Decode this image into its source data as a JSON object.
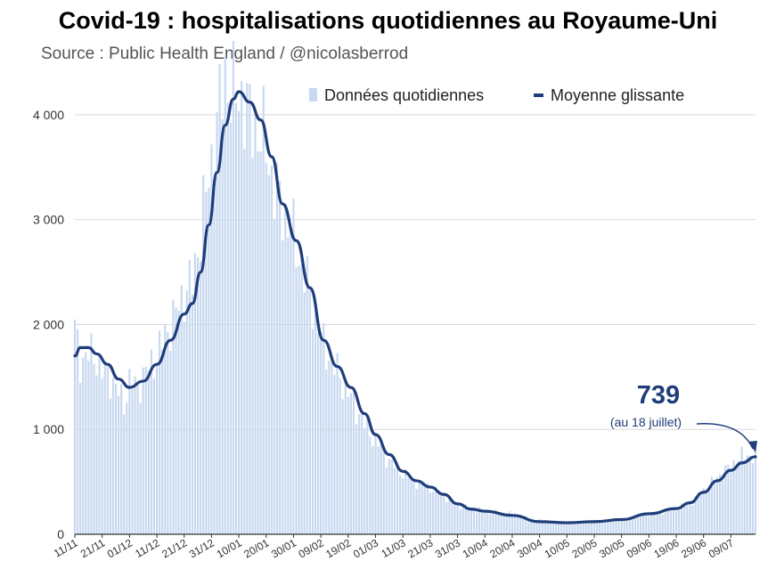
{
  "title": "Covid-19 : hospitalisations quotidiennes au Royaume-Uni",
  "subtitle": "Source : Public Health England / @nicolasberrod",
  "colors": {
    "bars": "#c7d8f0",
    "line": "#1f3d7a",
    "grid": "#d9d9d9",
    "annotation": "#1f3d7a",
    "axis_text": "#333333"
  },
  "chart_data": {
    "type": "bar",
    "grid": true,
    "legend_position": "top-right",
    "ylim": [
      0,
      4500
    ],
    "y_ticks": [
      0,
      1000,
      2000,
      3000,
      4000
    ],
    "y_tick_labels": [
      "0",
      "1 000",
      "2 000",
      "3 000",
      "4 000"
    ],
    "x_tick_labels": [
      "11/11",
      "21/11",
      "01/12",
      "11/12",
      "21/12",
      "31/12",
      "10/01",
      "20/01",
      "30/01",
      "09/02",
      "19/02",
      "01/03",
      "11/03",
      "21/03",
      "31/03",
      "10/04",
      "20/04",
      "30/04",
      "10/05",
      "20/05",
      "30/05",
      "09/06",
      "19/06",
      "29/06",
      "09/07"
    ],
    "x_start": "2020-11-11",
    "x_end": "2021-07-18",
    "series": [
      {
        "name": "Données quotidiennes",
        "type": "bar",
        "values_anchor": [
          [
            "2020-11-11",
            1950
          ],
          [
            "2020-11-13",
            1650
          ],
          [
            "2020-11-15",
            1700
          ],
          [
            "2020-11-18",
            1720
          ],
          [
            "2020-11-21",
            1550
          ],
          [
            "2020-11-24",
            1500
          ],
          [
            "2020-11-27",
            1350
          ],
          [
            "2020-11-29",
            1250
          ],
          [
            "2020-12-01",
            1450
          ],
          [
            "2020-12-04",
            1400
          ],
          [
            "2020-12-07",
            1550
          ],
          [
            "2020-12-11",
            1700
          ],
          [
            "2020-12-14",
            1900
          ],
          [
            "2020-12-17",
            2050
          ],
          [
            "2020-12-21",
            2300
          ],
          [
            "2020-12-24",
            2400
          ],
          [
            "2020-12-27",
            2900
          ],
          [
            "2020-12-30",
            3400
          ],
          [
            "2021-01-02",
            3900
          ],
          [
            "2021-01-05",
            4400
          ],
          [
            "2021-01-08",
            4150
          ],
          [
            "2021-01-11",
            4200
          ],
          [
            "2021-01-14",
            3950
          ],
          [
            "2021-01-17",
            3850
          ],
          [
            "2021-01-20",
            3700
          ],
          [
            "2021-01-23",
            3300
          ],
          [
            "2021-01-27",
            3050
          ],
          [
            "2021-01-31",
            2750
          ],
          [
            "2021-02-05",
            2300
          ],
          [
            "2021-02-10",
            1800
          ],
          [
            "2021-02-15",
            1550
          ],
          [
            "2021-02-20",
            1300
          ],
          [
            "2021-02-25",
            1050
          ],
          [
            "2021-03-01",
            900
          ],
          [
            "2021-03-06",
            700
          ],
          [
            "2021-03-11",
            580
          ],
          [
            "2021-03-16",
            500
          ],
          [
            "2021-03-21",
            440
          ],
          [
            "2021-03-26",
            370
          ],
          [
            "2021-03-31",
            280
          ],
          [
            "2021-04-05",
            240
          ],
          [
            "2021-04-10",
            220
          ],
          [
            "2021-04-20",
            190
          ],
          [
            "2021-04-30",
            130
          ],
          [
            "2021-05-10",
            110
          ],
          [
            "2021-05-20",
            120
          ],
          [
            "2021-05-30",
            140
          ],
          [
            "2021-06-09",
            190
          ],
          [
            "2021-06-19",
            240
          ],
          [
            "2021-06-25",
            320
          ],
          [
            "2021-06-29",
            410
          ],
          [
            "2021-07-04",
            540
          ],
          [
            "2021-07-09",
            650
          ],
          [
            "2021-07-13",
            740
          ],
          [
            "2021-07-18",
            760
          ]
        ]
      },
      {
        "name": "Moyenne glissante",
        "type": "line",
        "points": [
          [
            "2020-11-11",
            1700
          ],
          [
            "2020-11-13",
            1780
          ],
          [
            "2020-11-16",
            1780
          ],
          [
            "2020-11-19",
            1720
          ],
          [
            "2020-11-23",
            1620
          ],
          [
            "2020-11-27",
            1480
          ],
          [
            "2020-12-01",
            1400
          ],
          [
            "2020-12-06",
            1460
          ],
          [
            "2020-12-11",
            1620
          ],
          [
            "2020-12-16",
            1850
          ],
          [
            "2020-12-21",
            2100
          ],
          [
            "2020-12-24",
            2200
          ],
          [
            "2020-12-27",
            2500
          ],
          [
            "2020-12-30",
            2950
          ],
          [
            "2021-01-02",
            3450
          ],
          [
            "2021-01-05",
            3900
          ],
          [
            "2021-01-08",
            4150
          ],
          [
            "2021-01-10",
            4220
          ],
          [
            "2021-01-14",
            4120
          ],
          [
            "2021-01-18",
            3950
          ],
          [
            "2021-01-22",
            3600
          ],
          [
            "2021-01-26",
            3150
          ],
          [
            "2021-01-31",
            2800
          ],
          [
            "2021-02-05",
            2350
          ],
          [
            "2021-02-10",
            1850
          ],
          [
            "2021-02-15",
            1600
          ],
          [
            "2021-02-20",
            1400
          ],
          [
            "2021-02-25",
            1150
          ],
          [
            "2021-03-01",
            950
          ],
          [
            "2021-03-06",
            760
          ],
          [
            "2021-03-11",
            600
          ],
          [
            "2021-03-16",
            510
          ],
          [
            "2021-03-21",
            450
          ],
          [
            "2021-03-26",
            380
          ],
          [
            "2021-03-31",
            290
          ],
          [
            "2021-04-05",
            240
          ],
          [
            "2021-04-10",
            220
          ],
          [
            "2021-04-20",
            180
          ],
          [
            "2021-04-30",
            120
          ],
          [
            "2021-05-10",
            110
          ],
          [
            "2021-05-20",
            120
          ],
          [
            "2021-05-30",
            140
          ],
          [
            "2021-06-09",
            195
          ],
          [
            "2021-06-19",
            245
          ],
          [
            "2021-06-24",
            300
          ],
          [
            "2021-06-29",
            400
          ],
          [
            "2021-07-04",
            510
          ],
          [
            "2021-07-09",
            610
          ],
          [
            "2021-07-13",
            680
          ],
          [
            "2021-07-18",
            739
          ]
        ]
      }
    ],
    "legend": [
      {
        "label": "Données quotidiennes",
        "symbol": "bar"
      },
      {
        "label": "Moyenne glissante",
        "symbol": "line"
      }
    ],
    "annotation": {
      "value": "739",
      "note": "(au 18 juillet)",
      "x": "2021-07-18",
      "y": 739
    }
  }
}
